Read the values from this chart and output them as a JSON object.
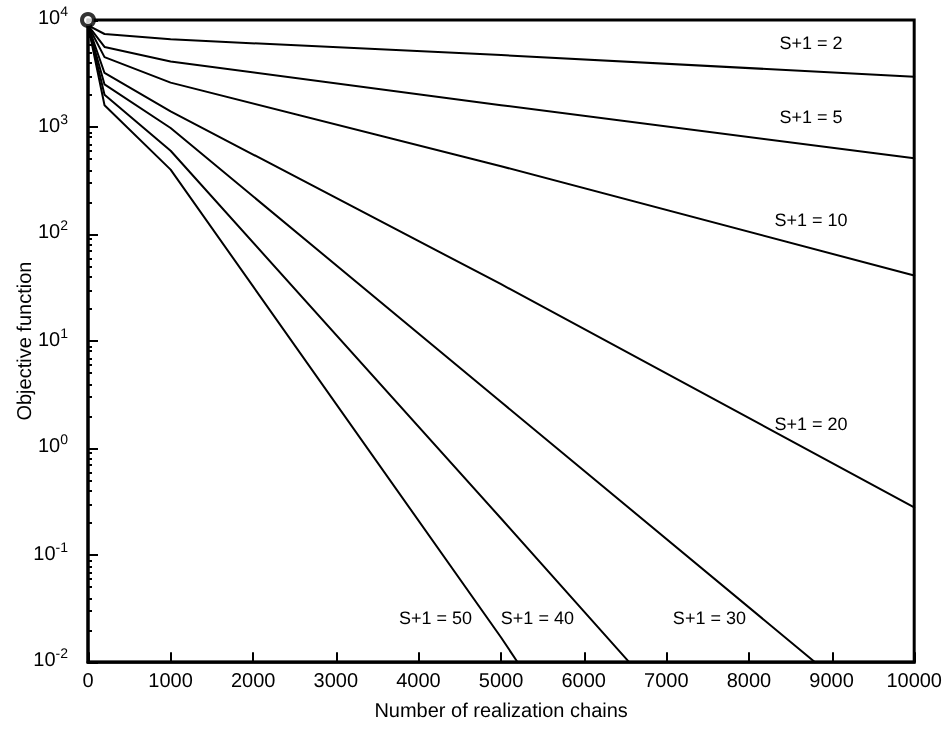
{
  "chart_data": {
    "type": "line",
    "xlabel": "Number of realization chains",
    "ylabel": "Objective function",
    "log": "y",
    "grid": false,
    "legend": false,
    "marker": "none",
    "line_style": "solid",
    "xlim": [
      0,
      10000
    ],
    "xticks": [
      0,
      1000,
      2000,
      3000,
      4000,
      5000,
      6000,
      7000,
      8000,
      9000,
      10000
    ],
    "ylim": [
      0.01,
      10000
    ],
    "yticks": [
      {
        "value": 0.01,
        "label": "10$^{-2}$"
      },
      {
        "value": 0.1,
        "label": "10$^{-1}$"
      },
      {
        "value": 1,
        "label": "10$^{0}$"
      },
      {
        "value": 10,
        "label": "10$^{1}$"
      },
      {
        "value": 100,
        "label": "10$^{2}$"
      },
      {
        "value": 1000,
        "label": "10$^{3}$"
      },
      {
        "value": 10000,
        "label": "10$^{4}$"
      }
    ],
    "series": [
      {
        "name": "S+1 = 2",
        "color": "#000000",
        "x": [
          0,
          200,
          1000,
          5000,
          10000
        ],
        "values": [
          8900,
          7400,
          6600,
          4700,
          2950
        ]
      },
      {
        "name": "S+1 = 5",
        "color": "#000000",
        "x": [
          0,
          200,
          1000,
          5000,
          10000
        ],
        "values": [
          8900,
          5600,
          4100,
          1600,
          510
        ]
      },
      {
        "name": "S+1 = 10",
        "color": "#000000",
        "x": [
          0,
          200,
          1000,
          5000,
          10000
        ],
        "values": [
          8900,
          4500,
          2600,
          430,
          41
        ]
      },
      {
        "name": "S+1 = 20",
        "color": "#000000",
        "x": [
          0,
          200,
          1000,
          5000,
          10000
        ],
        "values": [
          8900,
          3200,
          1400,
          34,
          0.28
        ]
      },
      {
        "name": "S+1 = 30",
        "color": "#000000",
        "x": [
          0,
          200,
          1000,
          5000,
          8800
        ],
        "values": [
          8900,
          2500,
          980,
          2.7,
          0.01
        ]
      },
      {
        "name": "S+1 = 40",
        "color": "#000000",
        "x": [
          0,
          200,
          1000,
          5000,
          6550
        ],
        "values": [
          8900,
          2000,
          600,
          0.22,
          0.01
        ]
      },
      {
        "name": "S+1 = 50",
        "color": "#000000",
        "x": [
          0,
          200,
          1000,
          5000,
          5200
        ],
        "values": [
          8900,
          1600,
          400,
          0.017,
          0.01
        ]
      },
      {
        "type": "scatter",
        "marker": "circle",
        "color": "#000000",
        "x": [
          0
        ],
        "values": [
          10000
        ]
      }
    ]
  }
}
